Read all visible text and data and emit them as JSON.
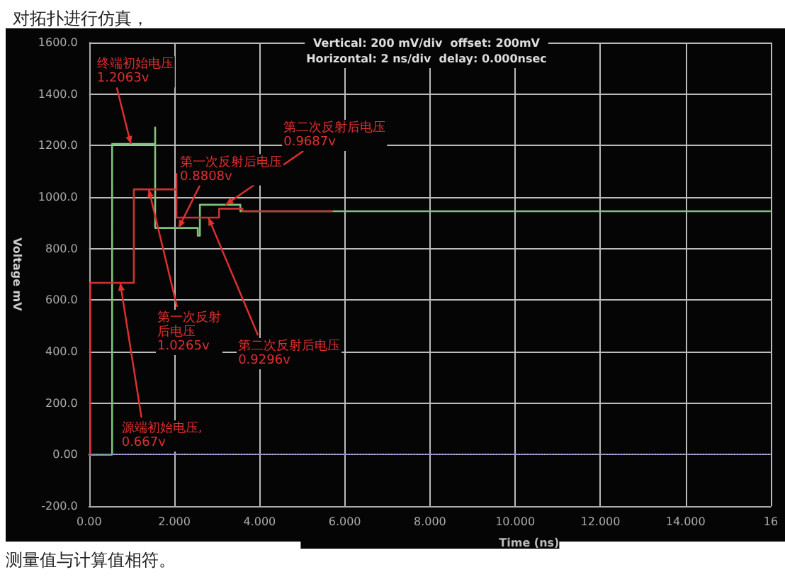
{
  "chart_data": {
    "type": "line",
    "title": "对拓扑进行仿真，",
    "subtitle": "Vertical: 200 mV/div  offset: 200mV\nHorizontal: 2 ns/div  delay: 0.000nsec",
    "xlabel": "Time (ns)",
    "ylabel": "Voltage mV",
    "xlim": [
      0,
      16
    ],
    "xticks": [
      {
        "value": 0,
        "label": "0.00"
      },
      {
        "value": 2,
        "label": "2.000"
      },
      {
        "value": 4,
        "label": "4.000"
      },
      {
        "value": 6,
        "label": "6.000"
      },
      {
        "value": 8,
        "label": "8.000"
      },
      {
        "value": 10,
        "label": "10.000"
      },
      {
        "value": 12,
        "label": "12.000"
      },
      {
        "value": 14,
        "label": "14.000"
      },
      {
        "value": 16,
        "label": "16"
      }
    ],
    "ylim": [
      -200,
      1600
    ],
    "yticks": [
      {
        "value": -200,
        "label": "-200.0"
      },
      {
        "value": 0,
        "label": "0.00"
      },
      {
        "value": 200,
        "label": "200.0"
      },
      {
        "value": 400,
        "label": "400.0"
      },
      {
        "value": 600,
        "label": "600.0"
      },
      {
        "value": 800,
        "label": "800.0"
      },
      {
        "value": 1000,
        "label": "1000.0"
      },
      {
        "value": 1200,
        "label": "1200.0"
      },
      {
        "value": 1400,
        "label": "1400.0"
      },
      {
        "value": 1600,
        "label": "1600.0"
      }
    ],
    "grid": true,
    "marker": "none",
    "line_style": "solid",
    "series": [
      {
        "color": "#7cc47c",
        "x": [
          0,
          0.54,
          0.54,
          1.55,
          1.55,
          1.55,
          2.55,
          2.55,
          2.6,
          2.6,
          3.55,
          3.55,
          16
        ],
        "values": [
          0,
          0,
          1206,
          1206,
          1270,
          880,
          880,
          850,
          850,
          970,
          970,
          945,
          945
        ]
      },
      {
        "color": "#cc3333",
        "x": [
          0,
          0.03,
          0.03,
          1.05,
          1.05,
          2.05,
          2.05,
          2.05,
          3.05,
          3.05,
          3.6,
          3.6,
          5.7
        ],
        "values": [
          0,
          0,
          667,
          667,
          1030,
          1030,
          1090,
          920,
          920,
          955,
          955,
          945,
          945
        ]
      }
    ],
    "ref_lines": [
      {
        "axis": "y",
        "value": 0,
        "color": "#7777cc",
        "line_style": "dotted"
      }
    ],
    "annotations": [
      {
        "text": "终端初始电压\n1.2063v",
        "x": 0.98,
        "y": 1206
      },
      {
        "text": "第一次反射后电压\n0.8808v",
        "x": 2.1,
        "y": 880
      },
      {
        "text": "第二次反射后电压\n0.9687v",
        "x": 3.2,
        "y": 970
      },
      {
        "text": "第一次反射后电压\n1.0265v",
        "x": 1.4,
        "y": 1030
      },
      {
        "text": "第二次反射后电压\n0.9296v",
        "x": 2.8,
        "y": 920
      },
      {
        "text": "源端初始电压,\n0.667v",
        "x": 0.73,
        "y": 667
      },
      "测量值与计算值相符。"
    ]
  }
}
